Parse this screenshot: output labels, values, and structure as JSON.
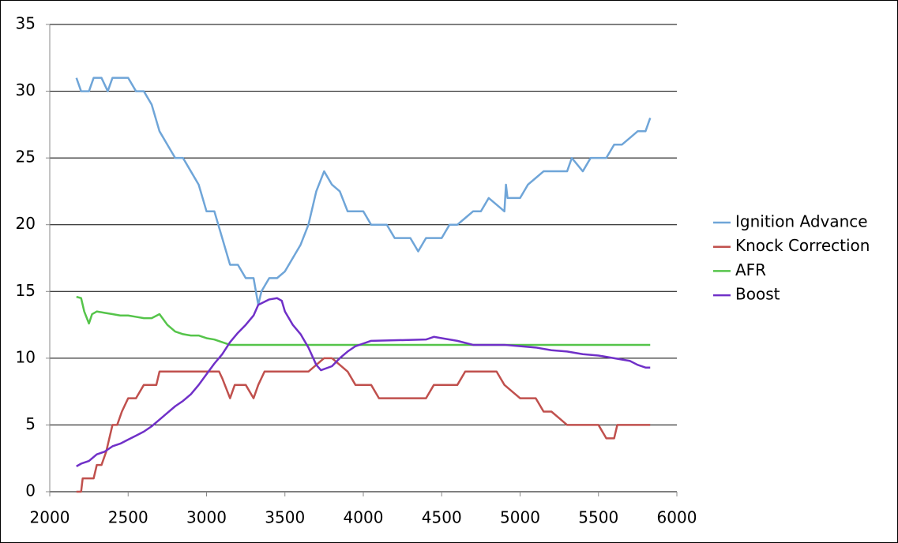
{
  "chart_data": {
    "type": "line",
    "xlim": [
      2000,
      6000
    ],
    "xticks": [
      2000,
      2500,
      3000,
      3500,
      4000,
      4500,
      5000,
      5500,
      6000
    ],
    "ylim": [
      0,
      35
    ],
    "yticks": [
      0,
      5,
      10,
      15,
      20,
      25,
      30,
      35
    ],
    "grid": true,
    "legend": "right",
    "series": [
      {
        "name": "Ignition Advance",
        "color": "#6fa5d8",
        "x": [
          2170,
          2200,
          2250,
          2280,
          2330,
          2370,
          2400,
          2500,
          2550,
          2600,
          2650,
          2700,
          2750,
          2800,
          2850,
          2900,
          2950,
          3000,
          3050,
          3100,
          3150,
          3200,
          3250,
          3300,
          3330,
          3350,
          3400,
          3450,
          3500,
          3550,
          3600,
          3650,
          3700,
          3750,
          3800,
          3850,
          3900,
          3950,
          4000,
          4050,
          4100,
          4150,
          4200,
          4300,
          4350,
          4400,
          4500,
          4550,
          4600,
          4650,
          4700,
          4750,
          4800,
          4850,
          4900,
          4910,
          4920,
          4950,
          5000,
          5050,
          5100,
          5150,
          5300,
          5330,
          5400,
          5450,
          5550,
          5600,
          5650,
          5700,
          5750,
          5800,
          5830
        ],
        "values": [
          31,
          30,
          30,
          31,
          31,
          30,
          31,
          31,
          30,
          30,
          29,
          27,
          26,
          25,
          25,
          24,
          23,
          21,
          21,
          19,
          17,
          17,
          16,
          16,
          14,
          15,
          16,
          16,
          16.5,
          17.5,
          18.5,
          20,
          22.5,
          24,
          23,
          22.5,
          21,
          21,
          21,
          20,
          20,
          20,
          19,
          19,
          18,
          19,
          19,
          20,
          20,
          20.5,
          21,
          21,
          22,
          21.5,
          21,
          23,
          22,
          22,
          22,
          23,
          23.5,
          24,
          24,
          25,
          24,
          25,
          25,
          26,
          26,
          26.5,
          27,
          27,
          28
        ]
      },
      {
        "name": "Knock Correction",
        "color": "#c0504d",
        "x": [
          2170,
          2200,
          2210,
          2250,
          2280,
          2300,
          2330,
          2360,
          2400,
          2430,
          2460,
          2500,
          2550,
          2600,
          2650,
          2680,
          2700,
          2800,
          3000,
          3080,
          3100,
          3150,
          3180,
          3250,
          3300,
          3330,
          3370,
          3500,
          3650,
          3700,
          3750,
          3800,
          3850,
          3900,
          3950,
          4050,
          4100,
          4150,
          4400,
          4450,
          4550,
          4600,
          4650,
          4850,
          4900,
          4950,
          5000,
          5100,
          5150,
          5200,
          5250,
          5300,
          5500,
          5550,
          5600,
          5620,
          5650,
          5830
        ],
        "values": [
          0,
          0,
          1,
          1,
          1,
          2,
          2,
          3,
          5,
          5,
          6,
          7,
          7,
          8,
          8,
          8,
          9,
          9,
          9,
          9,
          8.5,
          7,
          8,
          8,
          7,
          8,
          9,
          9,
          9,
          9.5,
          10,
          10,
          9.5,
          9,
          8,
          8,
          7,
          7,
          7,
          8,
          8,
          8,
          9,
          9,
          8,
          7.5,
          7,
          7,
          6,
          6,
          5.5,
          5,
          5,
          4,
          4,
          5,
          5,
          5
        ]
      },
      {
        "name": "AFR",
        "color": "#55c44a",
        "x": [
          2170,
          2200,
          2220,
          2250,
          2270,
          2300,
          2350,
          2400,
          2450,
          2500,
          2550,
          2600,
          2650,
          2700,
          2750,
          2800,
          2850,
          2900,
          2950,
          3000,
          3050,
          3100,
          3150,
          3200,
          4000,
          5000,
          5830
        ],
        "values": [
          14.6,
          14.5,
          13.5,
          12.6,
          13.3,
          13.5,
          13.4,
          13.3,
          13.2,
          13.2,
          13.1,
          13,
          13,
          13.3,
          12.5,
          12,
          11.8,
          11.7,
          11.7,
          11.5,
          11.4,
          11.2,
          11,
          11,
          11,
          11,
          11
        ]
      },
      {
        "name": "Boost",
        "color": "#7030c8",
        "x": [
          2170,
          2200,
          2250,
          2300,
          2350,
          2400,
          2450,
          2500,
          2550,
          2600,
          2650,
          2700,
          2750,
          2800,
          2850,
          2900,
          2950,
          3000,
          3050,
          3100,
          3150,
          3200,
          3250,
          3300,
          3330,
          3400,
          3450,
          3480,
          3500,
          3550,
          3600,
          3650,
          3700,
          3730,
          3800,
          3850,
          3900,
          3950,
          4000,
          4050,
          4400,
          4450,
          4500,
          4600,
          4700,
          4900,
          5000,
          5100,
          5200,
          5300,
          5400,
          5500,
          5600,
          5700,
          5750,
          5800,
          5830
        ],
        "values": [
          1.9,
          2.1,
          2.3,
          2.8,
          3,
          3.4,
          3.6,
          3.9,
          4.2,
          4.5,
          4.9,
          5.4,
          5.9,
          6.4,
          6.8,
          7.3,
          8,
          8.8,
          9.6,
          10.3,
          11.2,
          11.9,
          12.5,
          13.2,
          14,
          14.4,
          14.5,
          14.3,
          13.5,
          12.5,
          11.8,
          10.8,
          9.5,
          9.1,
          9.4,
          10,
          10.5,
          10.9,
          11.1,
          11.3,
          11.4,
          11.6,
          11.5,
          11.3,
          11,
          11,
          10.9,
          10.8,
          10.6,
          10.5,
          10.3,
          10.2,
          10,
          9.8,
          9.5,
          9.3,
          9.3
        ]
      }
    ]
  }
}
